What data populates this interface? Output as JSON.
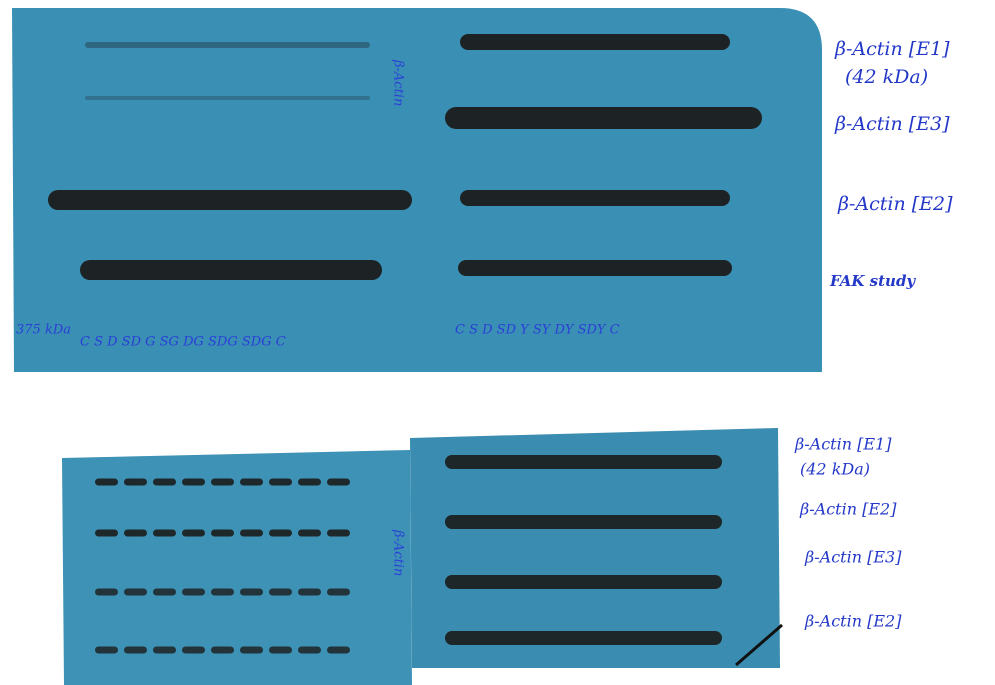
{
  "top_blot": {
    "labels": [
      "β-Actin [E1]",
      "(42 kDa)",
      "β-Actin [E3]",
      "β-Actin [E2]",
      "FAK study"
    ],
    "lanes_left": "C  S  D  SD  G  SG  DG  SDG  SDG  C",
    "lanes_right": "C  S  D  SD  Y  SY  DY  SDY  C",
    "marker": "375 kDa",
    "antibody": "β-Actin"
  },
  "bottom_blot": {
    "labels": [
      "β-Actin [E1]",
      "(42 kDa)",
      "β-Actin [E2]",
      "β-Actin [E3]",
      "β-Actin [E2]"
    ],
    "antibody": "β-Actin"
  }
}
